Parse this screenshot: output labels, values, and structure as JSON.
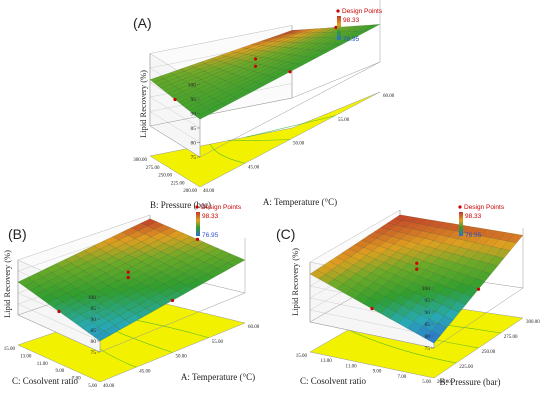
{
  "chart_data": [
    {
      "type": "surface3d",
      "panel_label": "(A)",
      "zlabel": "Lipid Recovery (%)",
      "xlabel": "A: Temperature (°C)",
      "ylabel": "B: Pressure (bar)",
      "x_ticks": [
        "40.00",
        "45.00",
        "50.00",
        "55.00",
        "60.00"
      ],
      "y_ticks": [
        "200.00",
        "225.00",
        "250.00",
        "275.00",
        "300.00"
      ],
      "z_ticks": [
        "75",
        "80",
        "85",
        "90",
        "95",
        "100"
      ],
      "zlim": [
        75,
        100
      ],
      "corners": {
        "x_low_y_low": 88,
        "x_high_y_low": 88,
        "x_low_y_high": 91,
        "x_high_y_high": 98.33
      },
      "legend": {
        "title": "Design Points",
        "max": "98.33",
        "min": "76.95"
      }
    },
    {
      "type": "surface3d",
      "panel_label": "(B)",
      "zlabel": "Lipid Recovery (%)",
      "xlabel": "A: Temperature (°C)",
      "ylabel": "C: Cosolvent ratio",
      "x_ticks": [
        "40.00",
        "45.00",
        "50.00",
        "55.00",
        "60.00"
      ],
      "y_ticks": [
        "5.00",
        "7.00",
        "9.00",
        "11.00",
        "13.00",
        "15.00"
      ],
      "z_ticks": [
        "75",
        "80",
        "85",
        "90",
        "95",
        "100"
      ],
      "zlim": [
        75,
        100
      ],
      "corners": {
        "x_low_y_low": 80,
        "x_high_y_low": 90,
        "x_low_y_high": 90,
        "x_high_y_high": 98.33
      },
      "legend": {
        "title": "Design Points",
        "max": "98.33",
        "min": "76.95"
      }
    },
    {
      "type": "surface3d",
      "panel_label": "(C)",
      "zlabel": "Lipid Recovery (%)",
      "xlabel": "B: Pressure (bar)",
      "ylabel": "C: Cosolvent ratio",
      "x_ticks": [
        "200.00",
        "225.00",
        "250.00",
        "275.00",
        "300.00"
      ],
      "y_ticks": [
        "5.00",
        "7.00",
        "9.00",
        "11.00",
        "13.00",
        "15.00"
      ],
      "z_ticks": [
        "75",
        "80",
        "85",
        "90",
        "95",
        "100"
      ],
      "zlim": [
        75,
        100
      ],
      "corners": {
        "x_low_y_low": 76.95,
        "x_high_y_low": 97,
        "x_low_y_high": 95,
        "x_high_y_high": 98
      },
      "legend": {
        "title": "Design Points",
        "max": "98.33",
        "min": "76.95"
      }
    }
  ],
  "colors": {
    "surface_high": "#c0392b",
    "surface_mid": "#2f9e2f",
    "surface_low": "#2f6fd0",
    "floor": "#f2f200",
    "contour": "#33aa33",
    "design_point": "#cc0000"
  }
}
